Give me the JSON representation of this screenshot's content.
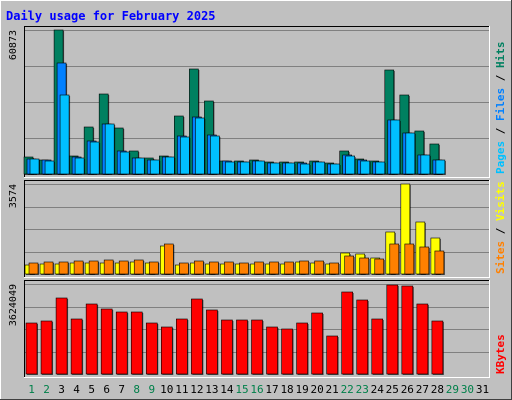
{
  "chart_data": {
    "type": "bar",
    "title": "Daily usage for February 2025",
    "days": [
      "1",
      "2",
      "3",
      "4",
      "5",
      "6",
      "7",
      "8",
      "9",
      "10",
      "11",
      "12",
      "13",
      "14",
      "15",
      "16",
      "17",
      "18",
      "19",
      "20",
      "21",
      "22",
      "23",
      "24",
      "25",
      "26",
      "27",
      "28",
      "29",
      "30",
      "31"
    ],
    "weekend_days": [
      "1",
      "2",
      "8",
      "9",
      "15",
      "16",
      "22",
      "23",
      "29",
      "30"
    ],
    "panels": [
      {
        "id": "hits-panel",
        "ymax": 60873,
        "ymax_label": "60873",
        "series": [
          {
            "name": "Hits",
            "color": "#008060",
            "values": [
              7000,
              6000,
              60873,
              7700,
              20000,
              34000,
              19500,
              9800,
              6900,
              7500,
              24500,
              44500,
              31000,
              5600,
              5400,
              5900,
              5200,
              5100,
              5000,
              5600,
              4700,
              9600,
              6200,
              5500,
              44000,
              33500,
              18000,
              12500,
              0,
              0,
              0
            ]
          },
          {
            "name": "Files",
            "color": "#0080ff",
            "values": [
              6500,
              5800,
              47000,
              7000,
              14000,
              21000,
              9600,
              6900,
              6000,
              7300,
              16000,
              24000,
              16500,
              5300,
              5100,
              5500,
              4800,
              4700,
              4600,
              5200,
              4400,
              7900,
              5800,
              5200,
              23000,
              17500,
              8000,
              6000,
              0,
              0,
              0
            ]
          },
          {
            "name": "Pages",
            "color": "#00c0ff",
            "values": [
              6300,
              5600,
              33500,
              6600,
              13500,
              21000,
              9500,
              6800,
              5800,
              7000,
              15800,
              23800,
              16000,
              5200,
              5000,
              5300,
              4600,
              4500,
              4400,
              5000,
              4200,
              7600,
              5600,
              5000,
              23000,
              17300,
              7900,
              6000,
              0,
              0,
              0
            ]
          }
        ]
      },
      {
        "id": "visits-panel",
        "ymax": 3574,
        "ymax_label": "3574",
        "series": [
          {
            "name": "Visits",
            "color": "#ffff00",
            "values": [
              360,
              400,
              380,
              430,
              420,
              450,
              420,
              460,
              420,
              1100,
              350,
              430,
              400,
              400,
              390,
              410,
              400,
              410,
              470,
              450,
              400,
              820,
              780,
              640,
              1650,
              3574,
              2050,
              1410,
              0,
              0,
              0
            ]
          },
          {
            "name": "Sites",
            "color": "#ff8000",
            "values": [
              450,
              480,
              460,
              500,
              500,
              560,
              520,
              560,
              490,
              1200,
              440,
              510,
              470,
              460,
              450,
              480,
              460,
              480,
              520,
              510,
              450,
              730,
              620,
              580,
              1200,
              1200,
              1080,
              920,
              0,
              0,
              0
            ]
          }
        ]
      },
      {
        "id": "kbytes-panel",
        "ymax": 3624049,
        "ymax_label": "3624049",
        "series": [
          {
            "name": "KBytes",
            "color": "#ff0000",
            "values": [
              2040000,
              2130000,
              3060000,
              2200000,
              2800000,
              2620000,
              2500000,
              2500000,
              2060000,
              1880000,
              2200000,
              3000000,
              2560000,
              2160000,
              2180000,
              2180000,
              1880000,
              1800000,
              2040000,
              2460000,
              1520000,
              3320000,
              2980000,
              2200000,
              3590000,
              3550000,
              2800000,
              2130000,
              0,
              0,
              0
            ]
          }
        ]
      }
    ],
    "legend_groups": [
      {
        "id": "hits-legend",
        "panel": "hits-panel",
        "items": [
          {
            "label": "Pages",
            "color": "#00c0ff"
          },
          {
            "label": " / ",
            "color": "#000000"
          },
          {
            "label": "Files",
            "color": "#0080ff"
          },
          {
            "label": " / ",
            "color": "#000000"
          },
          {
            "label": "Hits",
            "color": "#008060"
          }
        ]
      },
      {
        "id": "visits-legend",
        "panel": "visits-panel",
        "items": [
          {
            "label": "Sites",
            "color": "#ff8000"
          },
          {
            "label": " / ",
            "color": "#000000"
          },
          {
            "label": "Visits",
            "color": "#ffff00"
          }
        ]
      },
      {
        "id": "kbytes-legend",
        "panel": "kbytes-panel",
        "items": [
          {
            "label": "KBytes",
            "color": "#ff0000"
          }
        ]
      }
    ],
    "colors": {
      "frame": "#c0c0c0",
      "plot_bg": "#c0c0c0",
      "gridline": "#808080",
      "title": "#0000ff",
      "weekday_label": "#000000",
      "weekend_label": "#00804a"
    },
    "grid": true,
    "legend_position": "right"
  }
}
